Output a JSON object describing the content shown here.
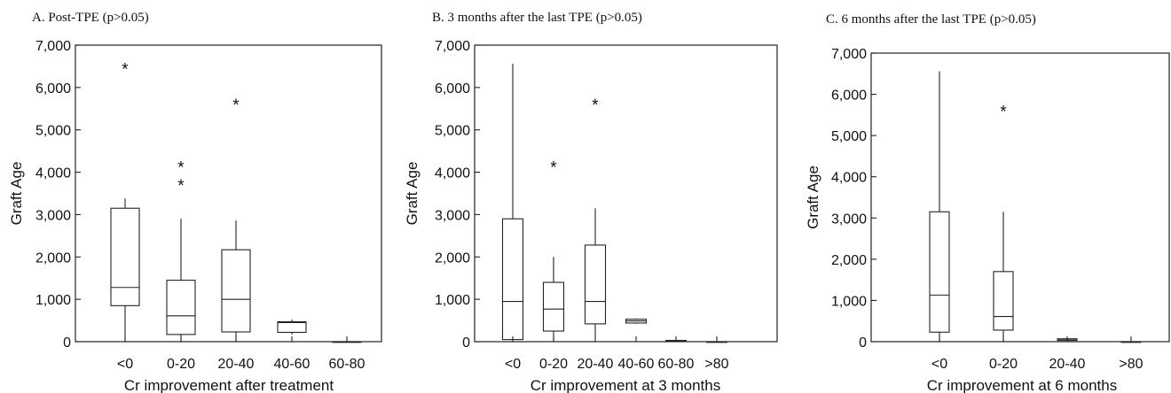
{
  "chart_data": [
    {
      "type": "boxplot",
      "title": "A. Post-TPE (p>0.05)",
      "xlabel": "Cr improvement after treatment",
      "ylabel": "Graft Age",
      "ylim": [
        0,
        7000
      ],
      "yticks": [
        "0",
        "1,000",
        "2,000",
        "3,000",
        "4,000",
        "5,000",
        "6,000",
        "7,000"
      ],
      "categories": [
        "<0",
        "0-20",
        "20-40",
        "40-60",
        "60-80"
      ],
      "boxes": [
        {
          "min": 0,
          "q1": 850,
          "median": 1280,
          "q3": 3150,
          "max": 3380
        },
        {
          "min": 0,
          "q1": 170,
          "median": 610,
          "q3": 1450,
          "max": 2900
        },
        {
          "min": 0,
          "q1": 230,
          "median": 1000,
          "q3": 2170,
          "max": 2860
        },
        {
          "min": 170,
          "q1": 220,
          "median": 450,
          "q3": 470,
          "max": 520
        },
        {
          "min": 0,
          "q1": 0,
          "median": 0,
          "q3": 0,
          "max": 0
        }
      ],
      "outliers": [
        {
          "category": "<0",
          "value": 6550
        },
        {
          "category": "0-20",
          "value": 4230
        },
        {
          "category": "0-20",
          "value": 3800
        },
        {
          "category": "20-40",
          "value": 5700
        }
      ]
    },
    {
      "type": "boxplot",
      "title": "B. 3 months after the last TPE (p>0.05)",
      "xlabel": "Cr improvement at 3 months",
      "ylabel": "Graft Age",
      "ylim": [
        0,
        7000
      ],
      "yticks": [
        "0",
        "1,000",
        "2,000",
        "3,000",
        "4,000",
        "5,000",
        "6,000",
        "7,000"
      ],
      "categories": [
        "<0",
        "0-20",
        "20-40",
        "40-60",
        "60-80",
        ">80"
      ],
      "boxes": [
        {
          "min": 0,
          "q1": 50,
          "median": 950,
          "q3": 2900,
          "max": 6560
        },
        {
          "min": 0,
          "q1": 250,
          "median": 770,
          "q3": 1400,
          "max": 2000
        },
        {
          "min": 50,
          "q1": 420,
          "median": 950,
          "q3": 2280,
          "max": 3150
        },
        {
          "min": 420,
          "q1": 440,
          "median": 490,
          "q3": 530,
          "max": 550
        },
        {
          "min": 0,
          "q1": 10,
          "median": 20,
          "q3": 30,
          "max": 40
        },
        {
          "min": 0,
          "q1": 0,
          "median": 0,
          "q3": 0,
          "max": 0
        }
      ],
      "outliers": [
        {
          "category": "0-20",
          "value": 4230
        },
        {
          "category": "20-40",
          "value": 5700
        }
      ]
    },
    {
      "type": "boxplot",
      "title": "C. 6 months after the last TPE (p>0.05)",
      "xlabel": "Cr improvement at 6 months",
      "ylabel": "Graft Age",
      "ylim": [
        0,
        7000
      ],
      "yticks": [
        "0",
        "1,000",
        "2,000",
        "3,000",
        "4,000",
        "5,000",
        "6,000",
        "7,000"
      ],
      "categories": [
        "<0",
        "0-20",
        "20-40",
        ">80"
      ],
      "boxes": [
        {
          "min": 0,
          "q1": 230,
          "median": 1130,
          "q3": 3150,
          "max": 6560
        },
        {
          "min": 0,
          "q1": 280,
          "median": 610,
          "q3": 1700,
          "max": 3150
        },
        {
          "min": 20,
          "q1": 30,
          "median": 60,
          "q3": 70,
          "max": 100
        },
        {
          "min": 0,
          "q1": 0,
          "median": 0,
          "q3": 0,
          "max": 0
        }
      ],
      "outliers": [
        {
          "category": "0-20",
          "value": 5700
        }
      ]
    }
  ]
}
